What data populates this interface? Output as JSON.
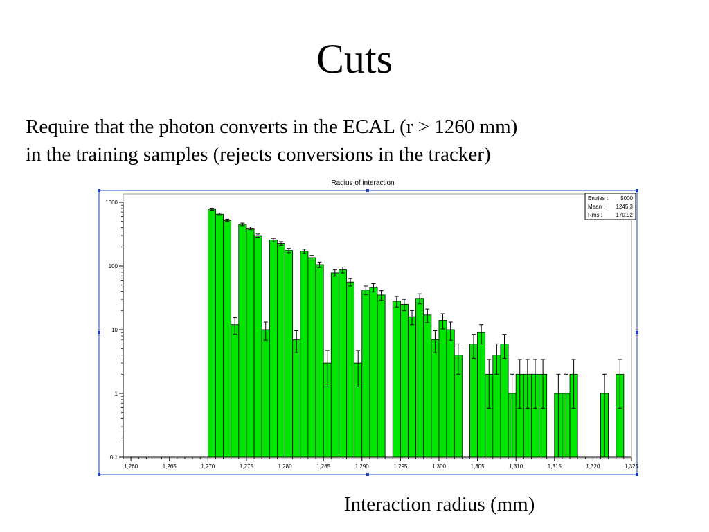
{
  "slide": {
    "title": "Cuts",
    "line1": "Require that the photon converts in the ECAL (r > 1260 mm)",
    "line2": "in the training samples (rejects conversions in the tracker)",
    "x_caption": "Interaction radius (mm)"
  },
  "chart_data": {
    "type": "bar",
    "title": "Radius of interaction",
    "xlabel": "",
    "ylabel": "",
    "y_scale": "log",
    "ylim": [
      0.1,
      1000
    ],
    "xlim": [
      1259,
      1325
    ],
    "bin_width": 1,
    "x_ticks": [
      "1,260",
      "1,265",
      "1,270",
      "1,275",
      "1,280",
      "1,285",
      "1,290",
      "1,295",
      "1,300",
      "1,305",
      "1,310",
      "1,315",
      "1,320",
      "1,325"
    ],
    "y_ticks": [
      "1000",
      "100",
      "10",
      "1",
      "0.1"
    ],
    "stats_box": [
      {
        "label": "Entries :",
        "value": "5000"
      },
      {
        "label": "Mean :",
        "value": "1245.3"
      },
      {
        "label": "Rms :",
        "value": "170.92"
      }
    ],
    "bar_color": "#00e600",
    "bins": [
      {
        "x": 1270,
        "y": 780
      },
      {
        "x": 1271,
        "y": 650
      },
      {
        "x": 1272,
        "y": 520
      },
      {
        "x": 1273,
        "y": 12
      },
      {
        "x": 1274,
        "y": 450
      },
      {
        "x": 1275,
        "y": 390
      },
      {
        "x": 1276,
        "y": 300
      },
      {
        "x": 1277,
        "y": 10
      },
      {
        "x": 1278,
        "y": 255
      },
      {
        "x": 1279,
        "y": 225
      },
      {
        "x": 1280,
        "y": 175
      },
      {
        "x": 1281,
        "y": 7
      },
      {
        "x": 1282,
        "y": 170
      },
      {
        "x": 1283,
        "y": 135
      },
      {
        "x": 1284,
        "y": 105
      },
      {
        "x": 1285,
        "y": 3
      },
      {
        "x": 1286,
        "y": 78
      },
      {
        "x": 1287,
        "y": 87
      },
      {
        "x": 1288,
        "y": 56
      },
      {
        "x": 1289,
        "y": 3
      },
      {
        "x": 1290,
        "y": 42
      },
      {
        "x": 1291,
        "y": 46
      },
      {
        "x": 1292,
        "y": 35
      },
      {
        "x": 1294,
        "y": 28
      },
      {
        "x": 1295,
        "y": 25
      },
      {
        "x": 1296,
        "y": 16
      },
      {
        "x": 1297,
        "y": 31
      },
      {
        "x": 1298,
        "y": 17
      },
      {
        "x": 1299,
        "y": 7
      },
      {
        "x": 1300,
        "y": 14
      },
      {
        "x": 1301,
        "y": 10
      },
      {
        "x": 1302,
        "y": 4
      },
      {
        "x": 1304,
        "y": 6
      },
      {
        "x": 1305,
        "y": 9
      },
      {
        "x": 1306,
        "y": 2
      },
      {
        "x": 1307,
        "y": 4
      },
      {
        "x": 1308,
        "y": 6
      },
      {
        "x": 1309,
        "y": 1
      },
      {
        "x": 1310,
        "y": 2
      },
      {
        "x": 1311,
        "y": 2
      },
      {
        "x": 1312,
        "y": 2
      },
      {
        "x": 1313,
        "y": 2
      },
      {
        "x": 1315,
        "y": 1
      },
      {
        "x": 1316,
        "y": 1
      },
      {
        "x": 1317,
        "y": 2
      },
      {
        "x": 1321,
        "y": 1
      },
      {
        "x": 1323,
        "y": 2
      }
    ]
  }
}
